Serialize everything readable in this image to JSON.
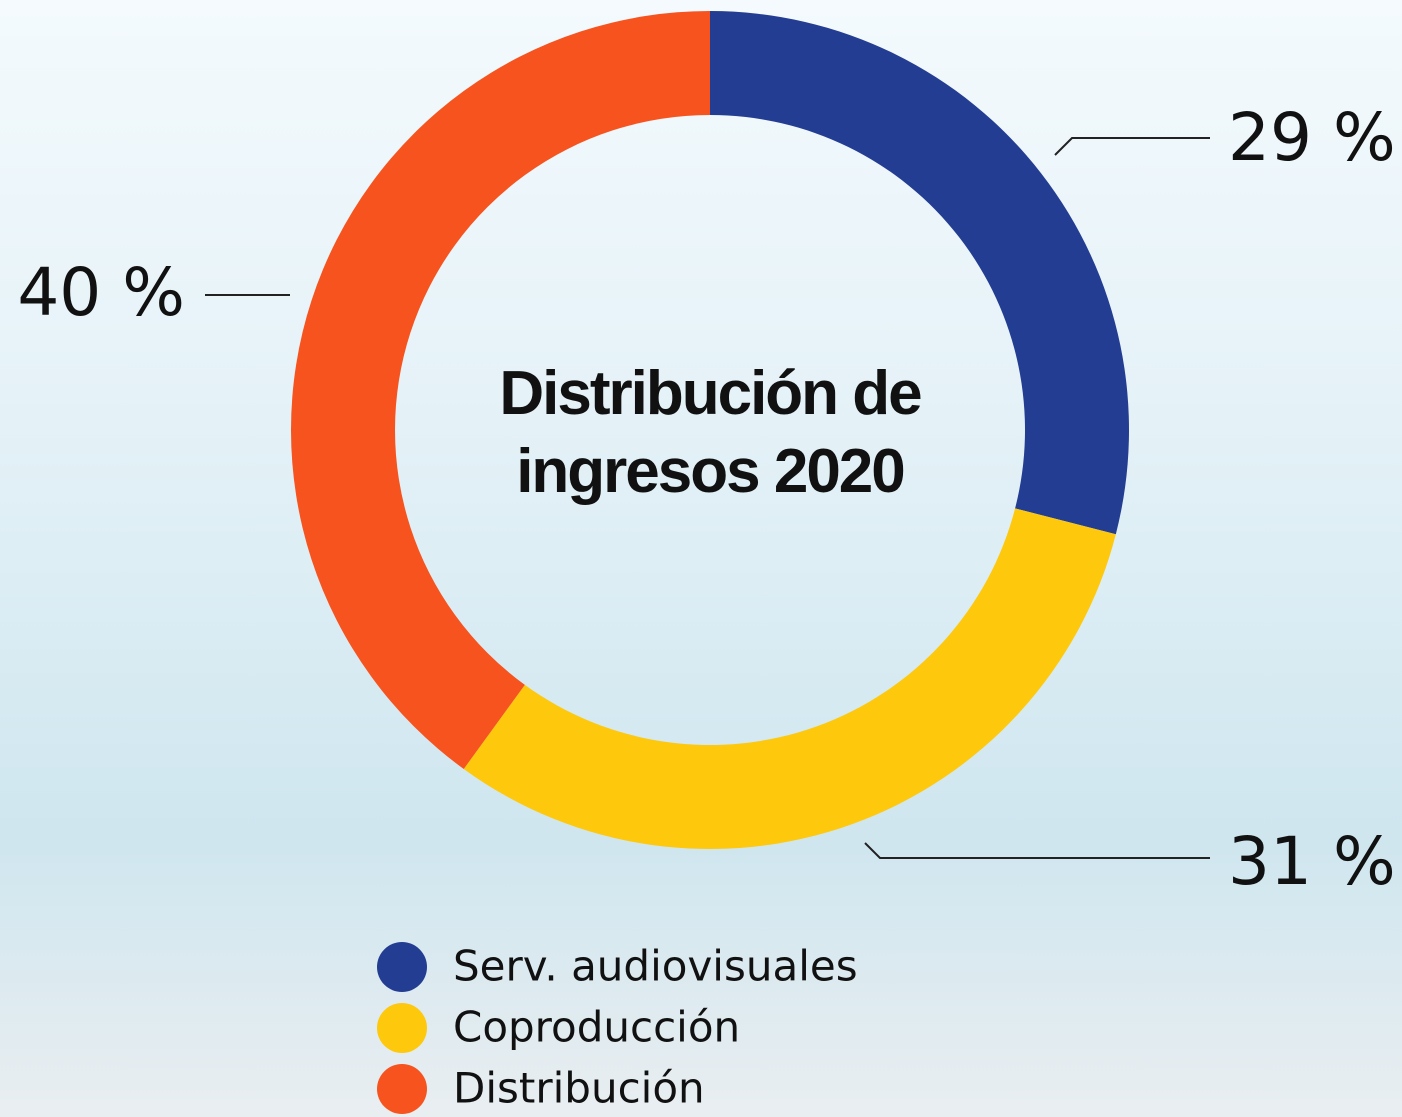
{
  "chart_data": {
    "type": "donut",
    "title": "Distribución de ingresos 2020",
    "categories": [
      "Serv. audiovisuales",
      "Coproducción",
      "Distribución"
    ],
    "values": [
      29,
      31,
      40
    ],
    "value_labels": [
      "29 %",
      "31 %",
      "40 %"
    ],
    "colors": [
      "#233d92",
      "#fec80c",
      "#f6531e"
    ]
  }
}
